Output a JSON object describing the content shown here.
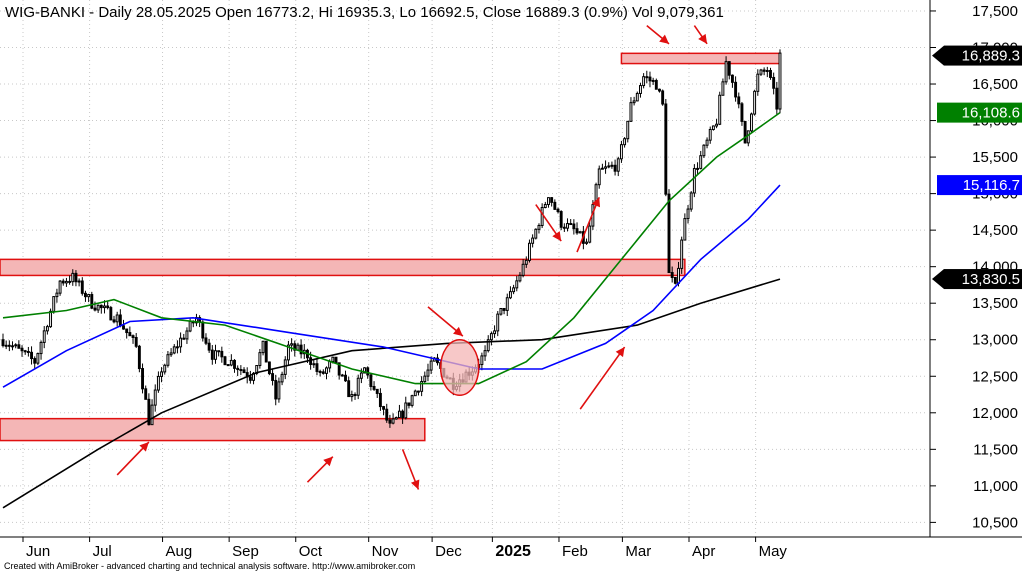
{
  "chart_data": {
    "type": "candlestick",
    "title": "WIG-BANKI - Daily 28.05.2025 Open 16773.2, Hi 16935.3, Lo 16692.5, Close 16889.3 (0.9%) Vol 9,079,361",
    "yticks": [
      10500,
      11000,
      11500,
      12000,
      12500,
      13000,
      13500,
      14000,
      14500,
      15000,
      15500,
      16000,
      16500,
      17000,
      17500
    ],
    "ytick_labels": [
      "10,500",
      "11,000",
      "11,500",
      "12,000",
      "12,500",
      "13,000",
      "13,500",
      "14,000",
      "14,500",
      "15,000",
      "15,500",
      "16,000",
      "16,500",
      "17,000",
      "17,500"
    ],
    "ylim": [
      10300,
      17650
    ],
    "x_months": [
      {
        "label": "Jun",
        "day": 0
      },
      {
        "label": "Jul",
        "day": 21
      },
      {
        "label": "Aug",
        "day": 44
      },
      {
        "label": "Sep",
        "day": 65
      },
      {
        "label": "Oct",
        "day": 86
      },
      {
        "label": "Nov",
        "day": 109
      },
      {
        "label": "Dec",
        "day": 129
      },
      {
        "label": "2025",
        "day": 148,
        "bold": true
      },
      {
        "label": "Feb",
        "day": 169
      },
      {
        "label": "Mar",
        "day": 189
      },
      {
        "label": "Apr",
        "day": 210
      },
      {
        "label": "May",
        "day": 231
      }
    ],
    "last_day": 245,
    "candles_src": [
      [
        0,
        13000
      ],
      [
        10,
        12700
      ],
      [
        18,
        13800
      ],
      [
        22,
        13850
      ],
      [
        28,
        13500
      ],
      [
        36,
        13300
      ],
      [
        42,
        12900
      ],
      [
        46,
        11900
      ],
      [
        50,
        12600
      ],
      [
        56,
        13000
      ],
      [
        61,
        13300
      ],
      [
        66,
        12800
      ],
      [
        72,
        12700
      ],
      [
        78,
        12500
      ],
      [
        82,
        12900
      ],
      [
        86,
        12200
      ],
      [
        90,
        12900
      ],
      [
        96,
        12800
      ],
      [
        100,
        12500
      ],
      [
        104,
        12700
      ],
      [
        110,
        12200
      ],
      [
        114,
        12600
      ],
      [
        118,
        12200
      ],
      [
        122,
        11800
      ],
      [
        126,
        12000
      ],
      [
        130,
        12300
      ],
      [
        136,
        12700
      ],
      [
        142,
        12400
      ],
      [
        148,
        12600
      ],
      [
        152,
        12800
      ],
      [
        156,
        13300
      ],
      [
        160,
        13600
      ],
      [
        164,
        14000
      ],
      [
        168,
        14500
      ],
      [
        172,
        15000
      ],
      [
        176,
        14600
      ],
      [
        180,
        14500
      ],
      [
        184,
        14300
      ],
      [
        188,
        15300
      ],
      [
        194,
        15400
      ],
      [
        198,
        16200
      ],
      [
        202,
        16600
      ],
      [
        206,
        16500
      ],
      [
        208,
        16200
      ],
      [
        210,
        13900
      ],
      [
        212,
        13700
      ],
      [
        214,
        14400
      ],
      [
        218,
        15300
      ],
      [
        222,
        15700
      ],
      [
        225,
        16000
      ],
      [
        228,
        16800
      ],
      [
        231,
        16400
      ],
      [
        234,
        15700
      ],
      [
        238,
        16600
      ],
      [
        241,
        16700
      ],
      [
        244,
        16200
      ],
      [
        245,
        16889
      ]
    ],
    "series": [
      {
        "color": "#000000",
        "points": [
          [
            0,
            10700
          ],
          [
            30,
            11500
          ],
          [
            50,
            12000
          ],
          [
            80,
            12550
          ],
          [
            110,
            12850
          ],
          [
            140,
            12950
          ],
          [
            170,
            13000
          ],
          [
            200,
            13200
          ],
          [
            220,
            13500
          ],
          [
            245,
            13830
          ]
        ]
      },
      {
        "color": "#0000ff",
        "points": [
          [
            0,
            12350
          ],
          [
            20,
            12850
          ],
          [
            40,
            13250
          ],
          [
            60,
            13300
          ],
          [
            90,
            13100
          ],
          [
            120,
            12900
          ],
          [
            150,
            12600
          ],
          [
            170,
            12600
          ],
          [
            190,
            12950
          ],
          [
            205,
            13400
          ],
          [
            220,
            14100
          ],
          [
            235,
            14650
          ],
          [
            245,
            15117
          ]
        ]
      },
      {
        "color": "#008000",
        "points": [
          [
            0,
            13300
          ],
          [
            20,
            13400
          ],
          [
            35,
            13550
          ],
          [
            50,
            13300
          ],
          [
            70,
            13200
          ],
          [
            90,
            12900
          ],
          [
            110,
            12600
          ],
          [
            130,
            12400
          ],
          [
            150,
            12400
          ],
          [
            165,
            12700
          ],
          [
            180,
            13300
          ],
          [
            195,
            14100
          ],
          [
            210,
            14900
          ],
          [
            225,
            15500
          ],
          [
            235,
            15800
          ],
          [
            245,
            16109
          ]
        ]
      }
    ],
    "price_tags": [
      {
        "text": "16,889.3",
        "value": 16889.3,
        "bg": "#000000",
        "fg": "#ffffff",
        "arrow": true
      },
      {
        "text": "16,108.6",
        "value": 16108.6,
        "bg": "#008000",
        "fg": "#ffffff",
        "arrow": false
      },
      {
        "text": "15,116.7",
        "value": 15116.7,
        "bg": "#0000ff",
        "fg": "#ffffff",
        "arrow": false
      },
      {
        "text": "13,830.5",
        "value": 13830.5,
        "bg": "#000000",
        "fg": "#ffffff",
        "arrow": true
      }
    ],
    "zones": [
      {
        "d0": 195,
        "d1": 245,
        "lo": 16780,
        "hi": 16920
      },
      {
        "d0": -3,
        "d1": 215,
        "lo": 13880,
        "hi": 14100
      },
      {
        "d0": -3,
        "d1": 133,
        "lo": 11620,
        "hi": 11920
      }
    ],
    "circle": {
      "day": 144,
      "value": 12620,
      "rx_days": 6,
      "ry_value": 380
    },
    "arrows": [
      {
        "d0": 36,
        "v0": 11150,
        "d1": 46,
        "v1": 11600
      },
      {
        "d0": 96,
        "v0": 11050,
        "d1": 104,
        "v1": 11400
      },
      {
        "d0": 126,
        "v0": 11500,
        "d1": 131,
        "v1": 10950
      },
      {
        "d0": 134,
        "v0": 13450,
        "d1": 145,
        "v1": 13050
      },
      {
        "d0": 168,
        "v0": 14850,
        "d1": 176,
        "v1": 14350
      },
      {
        "d0": 181,
        "v0": 14200,
        "d1": 188,
        "v1": 14950
      },
      {
        "d0": 182,
        "v0": 12050,
        "d1": 196,
        "v1": 12900
      },
      {
        "d0": 203,
        "v0": 17300,
        "d1": 210,
        "v1": 17050
      },
      {
        "d0": 218,
        "v0": 17300,
        "d1": 222,
        "v1": 17050
      }
    ],
    "footer": "Created with AmiBroker - advanced charting and technical analysis software. http://www.amibroker.com"
  },
  "colors": {
    "candle": "#000000",
    "zone_fill": "#f4b6b6",
    "zone_stroke": "#e01010",
    "arrow": "#e01010",
    "grid": "#c8c8c8"
  }
}
